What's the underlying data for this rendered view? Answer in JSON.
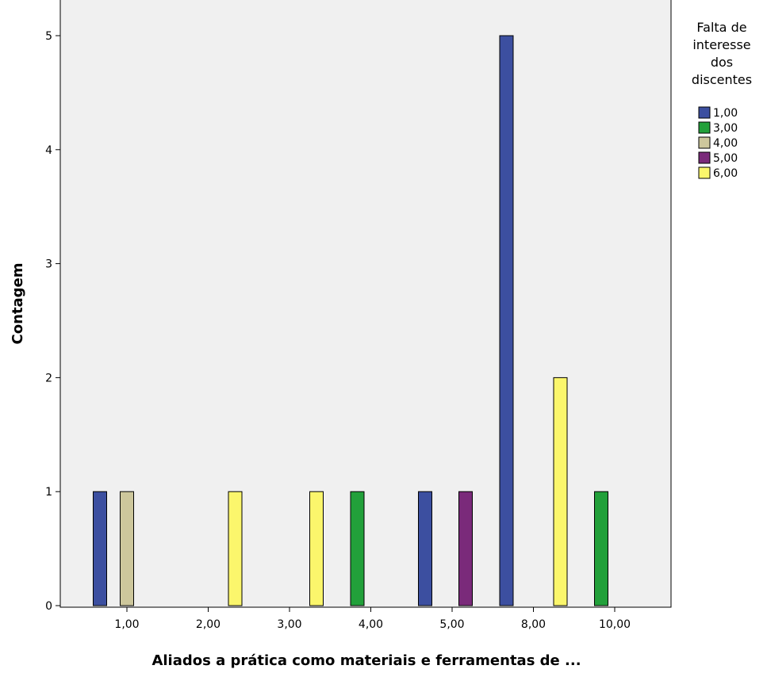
{
  "chart_data": {
    "type": "bar",
    "title": "",
    "xlabel": "Aliados a prática como materiais e ferramentas de ...",
    "ylabel": "Contagem",
    "categories": [
      "1,00",
      "2,00",
      "3,00",
      "4,00",
      "5,00",
      "8,00",
      "10,00"
    ],
    "ylim": [
      0,
      5
    ],
    "yticks": [
      "0",
      "1",
      "2",
      "3",
      "4",
      "5"
    ],
    "grid": false,
    "legend": {
      "title": [
        "Falta de",
        "interesse",
        "dos",
        "discentes"
      ],
      "placement": "right"
    },
    "series": [
      {
        "name": "1,00",
        "color": "#3c4fa0",
        "values": [
          1,
          0,
          0,
          0,
          1,
          5,
          0
        ]
      },
      {
        "name": "3,00",
        "color": "#22a03a",
        "values": [
          0,
          0,
          0,
          1,
          0,
          0,
          1
        ]
      },
      {
        "name": "4,00",
        "color": "#cdc79c",
        "values": [
          1,
          0,
          0,
          0,
          0,
          0,
          0
        ]
      },
      {
        "name": "5,00",
        "color": "#7a2a7a",
        "values": [
          0,
          0,
          0,
          0,
          1,
          0,
          0
        ]
      },
      {
        "name": "6,00",
        "color": "#fbf66c",
        "values": [
          0,
          1,
          1,
          0,
          0,
          2,
          0
        ]
      }
    ],
    "colors": {
      "plot_background": "#f0f0f0",
      "bar_outline": "#000000"
    }
  }
}
